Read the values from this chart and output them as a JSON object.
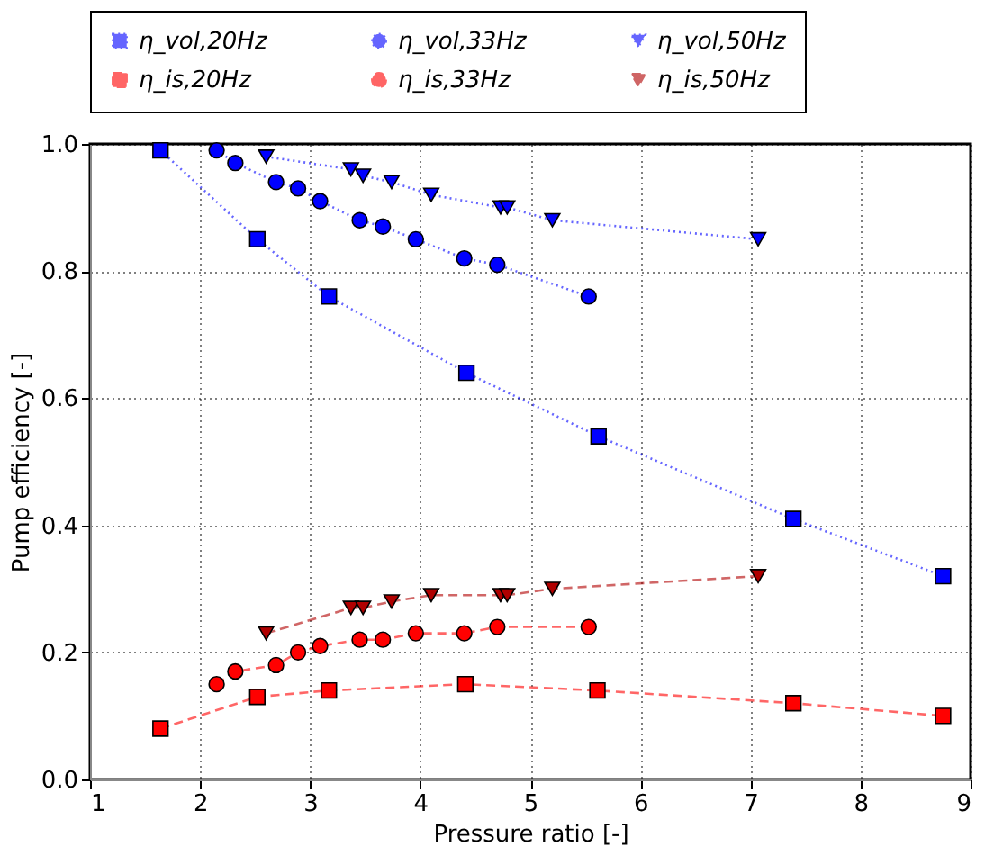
{
  "chart_data": {
    "type": "line",
    "xlabel": "Pressure ratio [-]",
    "ylabel": "Pump efficiency [-]",
    "xlim": [
      1,
      9
    ],
    "xticks": [
      1,
      2,
      3,
      4,
      5,
      6,
      7,
      8,
      9
    ],
    "ylim": [
      0,
      1
    ],
    "yticks": [
      {
        "value": 0,
        "label": "0.0"
      },
      {
        "value": 0.2,
        "label": "0.2"
      },
      {
        "value": 0.4,
        "label": "0.4"
      },
      {
        "value": 0.6,
        "label": "0.6"
      },
      {
        "value": 0.8,
        "label": "0.8"
      },
      {
        "value": 1,
        "label": "1.0"
      }
    ],
    "grid": true,
    "legend": "top",
    "series": [
      {
        "name": "η_vol,20Hz",
        "color": "#0000ff",
        "marker": "square",
        "line_style": "dotted",
        "x": [
          1.64,
          2.52,
          3.17,
          4.42,
          5.62,
          7.39,
          8.75
        ],
        "values": [
          0.99,
          0.85,
          0.76,
          0.64,
          0.54,
          0.41,
          0.32
        ]
      },
      {
        "name": "η_vol,33Hz",
        "color": "#0000ff",
        "marker": "circle",
        "line_style": "dotted",
        "x": [
          2.15,
          2.32,
          2.69,
          2.89,
          3.09,
          3.45,
          3.66,
          3.96,
          4.4,
          4.7,
          5.53
        ],
        "values": [
          0.99,
          0.97,
          0.94,
          0.93,
          0.91,
          0.88,
          0.87,
          0.85,
          0.82,
          0.81,
          0.76
        ]
      },
      {
        "name": "η_vol,50Hz",
        "color": "#0000ff",
        "marker": "triangle",
        "line_style": "dotted",
        "x": [
          2.6,
          3.37,
          3.48,
          3.74,
          4.1,
          4.73,
          4.79,
          5.2,
          7.07
        ],
        "values": [
          0.98,
          0.96,
          0.95,
          0.94,
          0.92,
          0.9,
          0.9,
          0.88,
          0.85
        ]
      },
      {
        "name": "η_is,20Hz",
        "color": "#ff0000",
        "marker": "square",
        "line_style": "dashed",
        "x": [
          1.64,
          2.52,
          3.17,
          4.41,
          5.61,
          7.39,
          8.75
        ],
        "values": [
          0.08,
          0.13,
          0.14,
          0.15,
          0.14,
          0.12,
          0.1
        ]
      },
      {
        "name": "η_is,33Hz",
        "color": "#ff0000",
        "marker": "circle",
        "line_style": "dashed",
        "x": [
          2.15,
          2.32,
          2.69,
          2.89,
          3.09,
          3.45,
          3.66,
          3.96,
          4.4,
          4.7,
          5.53
        ],
        "values": [
          0.15,
          0.17,
          0.18,
          0.2,
          0.21,
          0.22,
          0.22,
          0.23,
          0.23,
          0.24,
          0.24
        ]
      },
      {
        "name": "η_is,50Hz",
        "color": "#b00000",
        "marker": "triangle",
        "line_style": "dashed",
        "x": [
          2.6,
          3.37,
          3.48,
          3.74,
          4.1,
          4.73,
          4.79,
          5.2,
          7.07
        ],
        "values": [
          0.23,
          0.27,
          0.27,
          0.28,
          0.29,
          0.29,
          0.29,
          0.3,
          0.32
        ]
      }
    ]
  }
}
